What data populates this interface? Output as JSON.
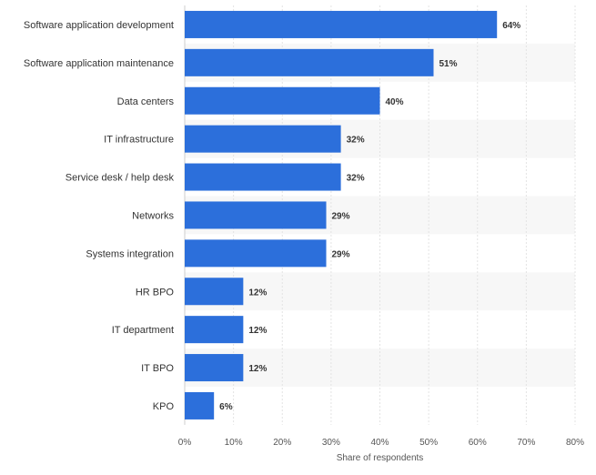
{
  "chart_data": {
    "type": "bar",
    "orientation": "horizontal",
    "categories": [
      "Software application development",
      "Software application maintenance",
      "Data centers",
      "IT infrastructure",
      "Service desk / help desk",
      "Networks",
      "Systems integration",
      "HR BPO",
      "IT department",
      "IT BPO",
      "KPO"
    ],
    "values": [
      64,
      51,
      40,
      32,
      32,
      29,
      29,
      12,
      12,
      12,
      6
    ],
    "value_labels": [
      "64%",
      "51%",
      "40%",
      "32%",
      "32%",
      "29%",
      "29%",
      "12%",
      "12%",
      "12%",
      "6%"
    ],
    "xlabel": "Share of respondents",
    "ylabel": "",
    "xlim": [
      0,
      80
    ],
    "ticks": [
      0,
      10,
      20,
      30,
      40,
      50,
      60,
      70,
      80
    ],
    "tick_labels": [
      "0%",
      "10%",
      "20%",
      "30%",
      "40%",
      "50%",
      "60%",
      "70%",
      "80%"
    ],
    "grid": true,
    "bar_color": "#2c6fdb",
    "alt_row_color": "#f7f7f7"
  }
}
